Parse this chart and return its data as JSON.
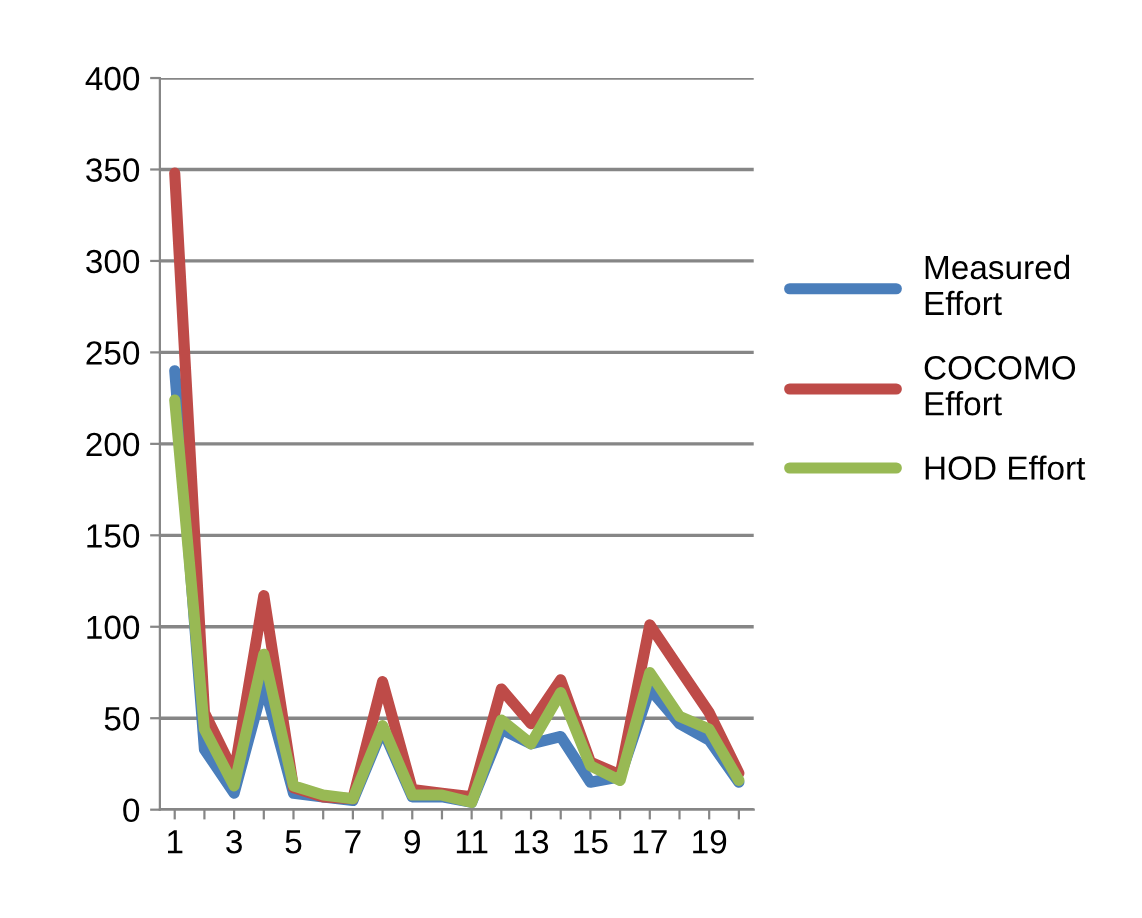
{
  "chart_data": {
    "type": "line",
    "categories": [
      "1",
      null,
      "3",
      null,
      "5",
      null,
      "7",
      null,
      "9",
      null,
      "11",
      null,
      "13",
      null,
      "15",
      null,
      "17",
      null,
      "19",
      null
    ],
    "series": [
      {
        "name": "Measured Effort",
        "color": "#4a7ebb",
        "values": [
          240,
          33,
          9,
          69,
          9,
          7,
          5,
          44,
          7,
          7,
          4,
          44,
          36,
          40,
          15,
          18,
          66,
          47,
          38,
          15
        ]
      },
      {
        "name": "COCOMO Effort",
        "color": "#be4b48",
        "values": [
          348,
          53,
          20,
          117,
          12,
          7,
          6,
          70,
          11,
          9,
          7,
          66,
          47,
          71,
          26,
          19,
          101,
          77,
          53,
          20
        ]
      },
      {
        "name": "HOD Effort",
        "color": "#98b954",
        "values": [
          224,
          44,
          13,
          85,
          13,
          8,
          6,
          46,
          8,
          8,
          4,
          49,
          36,
          64,
          24,
          16,
          75,
          51,
          44,
          16
        ]
      }
    ],
    "ylim": [
      0,
      400
    ],
    "yticks": [
      0,
      50,
      100,
      150,
      200,
      250,
      300,
      350,
      400
    ],
    "grid": "y",
    "legend": "right",
    "marker": "none",
    "line_style": "solid"
  }
}
